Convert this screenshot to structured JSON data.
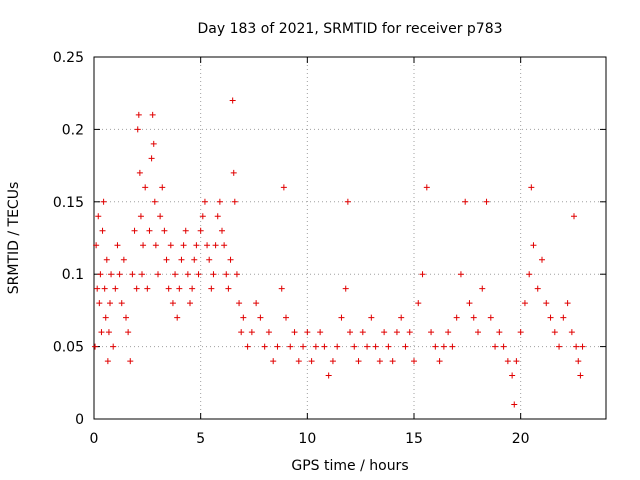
{
  "chart_data": {
    "type": "scatter",
    "title": "Day 183 of 2021, SRMTID for receiver p783",
    "xlabel": "GPS time / hours",
    "ylabel": "SRMTID / TECUs",
    "xlim": [
      0,
      24
    ],
    "ylim": [
      0,
      0.25
    ],
    "xticks": [
      0,
      5,
      10,
      15,
      20
    ],
    "xtick_labels": [
      "0",
      "5",
      "10",
      "15",
      "20"
    ],
    "yticks": [
      0,
      0.05,
      0.1,
      0.15,
      0.2,
      0.25
    ],
    "ytick_labels": [
      "0",
      "0.05",
      "0.1",
      "0.15",
      "0.2",
      "0.25"
    ],
    "grid": true,
    "marker": "+",
    "color": "#e00000",
    "series": [
      {
        "name": "SRMTID",
        "points": [
          [
            0.05,
            0.05
          ],
          [
            0.1,
            0.12
          ],
          [
            0.15,
            0.09
          ],
          [
            0.2,
            0.14
          ],
          [
            0.25,
            0.08
          ],
          [
            0.3,
            0.1
          ],
          [
            0.35,
            0.06
          ],
          [
            0.4,
            0.13
          ],
          [
            0.45,
            0.15
          ],
          [
            0.5,
            0.09
          ],
          [
            0.55,
            0.07
          ],
          [
            0.6,
            0.11
          ],
          [
            0.65,
            0.04
          ],
          [
            0.7,
            0.06
          ],
          [
            0.75,
            0.08
          ],
          [
            0.8,
            0.1
          ],
          [
            0.9,
            0.05
          ],
          [
            1.0,
            0.09
          ],
          [
            1.1,
            0.12
          ],
          [
            1.2,
            0.1
          ],
          [
            1.3,
            0.08
          ],
          [
            1.4,
            0.11
          ],
          [
            1.5,
            0.07
          ],
          [
            1.6,
            0.06
          ],
          [
            1.7,
            0.04
          ],
          [
            1.8,
            0.1
          ],
          [
            1.9,
            0.13
          ],
          [
            2.0,
            0.09
          ],
          [
            2.05,
            0.2
          ],
          [
            2.1,
            0.21
          ],
          [
            2.15,
            0.17
          ],
          [
            2.2,
            0.14
          ],
          [
            2.25,
            0.1
          ],
          [
            2.3,
            0.12
          ],
          [
            2.4,
            0.16
          ],
          [
            2.5,
            0.09
          ],
          [
            2.6,
            0.13
          ],
          [
            2.7,
            0.18
          ],
          [
            2.75,
            0.21
          ],
          [
            2.8,
            0.19
          ],
          [
            2.85,
            0.15
          ],
          [
            2.9,
            0.12
          ],
          [
            3.0,
            0.1
          ],
          [
            3.1,
            0.14
          ],
          [
            3.2,
            0.16
          ],
          [
            3.3,
            0.13
          ],
          [
            3.4,
            0.11
          ],
          [
            3.5,
            0.09
          ],
          [
            3.6,
            0.12
          ],
          [
            3.7,
            0.08
          ],
          [
            3.8,
            0.1
          ],
          [
            3.9,
            0.07
          ],
          [
            4.0,
            0.09
          ],
          [
            4.1,
            0.11
          ],
          [
            4.2,
            0.12
          ],
          [
            4.3,
            0.13
          ],
          [
            4.4,
            0.1
          ],
          [
            4.5,
            0.08
          ],
          [
            4.6,
            0.09
          ],
          [
            4.7,
            0.11
          ],
          [
            4.8,
            0.12
          ],
          [
            4.9,
            0.1
          ],
          [
            5.0,
            0.13
          ],
          [
            5.1,
            0.14
          ],
          [
            5.2,
            0.15
          ],
          [
            5.3,
            0.12
          ],
          [
            5.4,
            0.11
          ],
          [
            5.5,
            0.09
          ],
          [
            5.6,
            0.1
          ],
          [
            5.7,
            0.12
          ],
          [
            5.8,
            0.14
          ],
          [
            5.9,
            0.15
          ],
          [
            6.0,
            0.13
          ],
          [
            6.1,
            0.12
          ],
          [
            6.2,
            0.1
          ],
          [
            6.3,
            0.09
          ],
          [
            6.4,
            0.11
          ],
          [
            6.5,
            0.22
          ],
          [
            6.55,
            0.17
          ],
          [
            6.6,
            0.15
          ],
          [
            6.7,
            0.1
          ],
          [
            6.8,
            0.08
          ],
          [
            6.9,
            0.06
          ],
          [
            7.0,
            0.07
          ],
          [
            7.2,
            0.05
          ],
          [
            7.4,
            0.06
          ],
          [
            7.6,
            0.08
          ],
          [
            7.8,
            0.07
          ],
          [
            8.0,
            0.05
          ],
          [
            8.2,
            0.06
          ],
          [
            8.4,
            0.04
          ],
          [
            8.6,
            0.05
          ],
          [
            8.8,
            0.09
          ],
          [
            8.9,
            0.16
          ],
          [
            9.0,
            0.07
          ],
          [
            9.2,
            0.05
          ],
          [
            9.4,
            0.06
          ],
          [
            9.6,
            0.04
          ],
          [
            9.8,
            0.05
          ],
          [
            10.0,
            0.06
          ],
          [
            10.2,
            0.04
          ],
          [
            10.4,
            0.05
          ],
          [
            10.6,
            0.06
          ],
          [
            10.8,
            0.05
          ],
          [
            11.0,
            0.03
          ],
          [
            11.2,
            0.04
          ],
          [
            11.4,
            0.05
          ],
          [
            11.6,
            0.07
          ],
          [
            11.8,
            0.09
          ],
          [
            11.9,
            0.15
          ],
          [
            12.0,
            0.06
          ],
          [
            12.2,
            0.05
          ],
          [
            12.4,
            0.04
          ],
          [
            12.6,
            0.06
          ],
          [
            12.8,
            0.05
          ],
          [
            13.0,
            0.07
          ],
          [
            13.2,
            0.05
          ],
          [
            13.4,
            0.04
          ],
          [
            13.6,
            0.06
          ],
          [
            13.8,
            0.05
          ],
          [
            14.0,
            0.04
          ],
          [
            14.2,
            0.06
          ],
          [
            14.4,
            0.07
          ],
          [
            14.6,
            0.05
          ],
          [
            14.8,
            0.06
          ],
          [
            15.0,
            0.04
          ],
          [
            15.2,
            0.08
          ],
          [
            15.4,
            0.1
          ],
          [
            15.6,
            0.16
          ],
          [
            15.8,
            0.06
          ],
          [
            16.0,
            0.05
          ],
          [
            16.2,
            0.04
          ],
          [
            16.4,
            0.05
          ],
          [
            16.6,
            0.06
          ],
          [
            16.8,
            0.05
          ],
          [
            17.0,
            0.07
          ],
          [
            17.2,
            0.1
          ],
          [
            17.4,
            0.15
          ],
          [
            17.6,
            0.08
          ],
          [
            17.8,
            0.07
          ],
          [
            18.0,
            0.06
          ],
          [
            18.2,
            0.09
          ],
          [
            18.4,
            0.15
          ],
          [
            18.6,
            0.07
          ],
          [
            18.8,
            0.05
          ],
          [
            19.0,
            0.06
          ],
          [
            19.2,
            0.05
          ],
          [
            19.4,
            0.04
          ],
          [
            19.6,
            0.03
          ],
          [
            19.7,
            0.01
          ],
          [
            19.8,
            0.04
          ],
          [
            20.0,
            0.06
          ],
          [
            20.2,
            0.08
          ],
          [
            20.4,
            0.1
          ],
          [
            20.5,
            0.16
          ],
          [
            20.6,
            0.12
          ],
          [
            20.8,
            0.09
          ],
          [
            21.0,
            0.11
          ],
          [
            21.2,
            0.08
          ],
          [
            21.4,
            0.07
          ],
          [
            21.6,
            0.06
          ],
          [
            21.8,
            0.05
          ],
          [
            22.0,
            0.07
          ],
          [
            22.2,
            0.08
          ],
          [
            22.4,
            0.06
          ],
          [
            22.5,
            0.14
          ],
          [
            22.6,
            0.05
          ],
          [
            22.7,
            0.04
          ],
          [
            22.8,
            0.03
          ],
          [
            22.9,
            0.05
          ]
        ]
      }
    ]
  }
}
